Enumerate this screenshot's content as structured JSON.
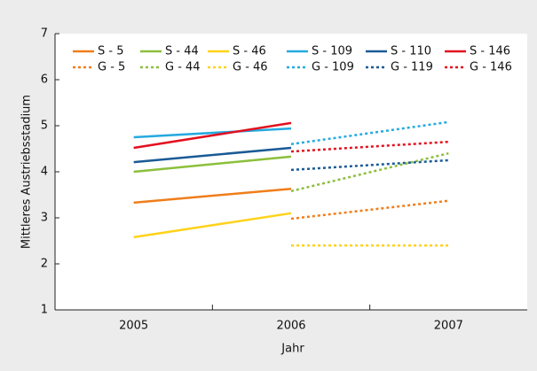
{
  "chart_data": {
    "type": "line",
    "x_label": "Jahr",
    "y_label": "Mittleres Austriebsstadium",
    "categories": [
      "2005",
      "2006",
      "2007"
    ],
    "ylim": [
      1,
      7
    ],
    "yticks": [
      1,
      2,
      3,
      4,
      5,
      6,
      7
    ],
    "series": [
      {
        "name": "S - 5",
        "color": "#f07d1a",
        "dashed": false,
        "values": [
          3.33,
          3.63,
          null
        ]
      },
      {
        "name": "S - 44",
        "color": "#8cbf3c",
        "dashed": false,
        "values": [
          4.0,
          4.33,
          null
        ]
      },
      {
        "name": "S - 46",
        "color": "#ffd21a",
        "dashed": false,
        "values": [
          2.58,
          3.1,
          null
        ]
      },
      {
        "name": "S - 109",
        "color": "#25a9e0",
        "dashed": false,
        "values": [
          4.75,
          4.94,
          null
        ]
      },
      {
        "name": "S - 110",
        "color": "#1a5a96",
        "dashed": false,
        "values": [
          4.21,
          4.52,
          null
        ]
      },
      {
        "name": "S - 146",
        "color": "#e2101f",
        "dashed": false,
        "values": [
          4.52,
          5.06,
          null
        ]
      },
      {
        "name": "G - 5",
        "color": "#f07d1a",
        "dashed": true,
        "values": [
          null,
          2.98,
          3.37
        ]
      },
      {
        "name": "G - 44",
        "color": "#8cbf3c",
        "dashed": true,
        "values": [
          null,
          3.58,
          4.4
        ]
      },
      {
        "name": "G - 46",
        "color": "#ffd21a",
        "dashed": true,
        "values": [
          null,
          2.4,
          2.4
        ]
      },
      {
        "name": "G - 109",
        "color": "#25a9e0",
        "dashed": true,
        "values": [
          null,
          4.6,
          5.08
        ]
      },
      {
        "name": "G - 119",
        "color": "#1a5a96",
        "dashed": true,
        "values": [
          null,
          4.04,
          4.25
        ]
      },
      {
        "name": "G - 146",
        "color": "#e2101f",
        "dashed": true,
        "values": [
          null,
          4.44,
          4.65
        ]
      }
    ]
  }
}
